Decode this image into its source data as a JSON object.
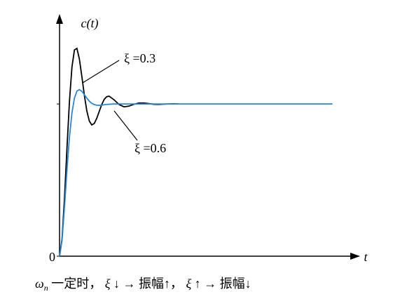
{
  "chart_data": {
    "type": "line",
    "y_label": "c(t)",
    "x_label": "t",
    "xlim": [
      0,
      60
    ],
    "ylim": [
      0,
      1.6
    ],
    "yticks": [
      0,
      {
        "value": 1,
        "label": null
      }
    ],
    "x": [
      0,
      0.5,
      1,
      1.5,
      2,
      2.5,
      3,
      3.5,
      4,
      4.5,
      5,
      5.5,
      6,
      6.5,
      7,
      7.5,
      8,
      8.5,
      9,
      9.5,
      10,
      11,
      12,
      13,
      14,
      15,
      16,
      17,
      18,
      19,
      20,
      21,
      22,
      23,
      24,
      28,
      35,
      45,
      55
    ],
    "series": [
      {
        "name": "ξ =0.3",
        "color": "#000000",
        "values": [
          0,
          0.111,
          0.382,
          0.712,
          1.019,
          1.242,
          1.355,
          1.365,
          1.295,
          1.18,
          1.057,
          0.954,
          0.888,
          0.862,
          0.872,
          0.906,
          0.951,
          0.996,
          1.03,
          1.048,
          1.051,
          1.027,
          0.996,
          0.981,
          0.986,
          0.998,
          1.006,
          1.006,
          1.002,
          0.998,
          0.997,
          0.999,
          1,
          1.001,
          1,
          null,
          null,
          null,
          null
        ]
      },
      {
        "name": "ξ =0.6",
        "color": "#2a86d6",
        "values": [
          0,
          0.101,
          0.322,
          0.568,
          0.784,
          0.941,
          1.038,
          1.085,
          1.094,
          1.083,
          1.061,
          1.038,
          1.018,
          1.004,
          0.996,
          0.992,
          0.991,
          0.992,
          0.995,
          0.997,
          0.998,
          1,
          1,
          1,
          1,
          1,
          1,
          1,
          1,
          1,
          1,
          1,
          1,
          1,
          1,
          1,
          1,
          1,
          1
        ]
      }
    ],
    "caption_parts": [
      "ω",
      "n",
      " 一定时，",
      " ξ",
      " ↓ → 振幅↑，",
      " ξ",
      " ↑ → 振幅↓"
    ]
  }
}
